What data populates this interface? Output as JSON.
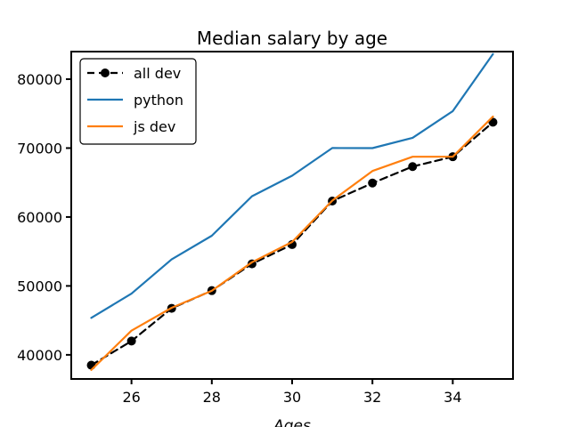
{
  "chart_data": {
    "type": "line",
    "title": "Median salary by age",
    "xlabel": "Ages",
    "ylabel": "",
    "x": [
      25,
      26,
      27,
      28,
      29,
      30,
      31,
      32,
      33,
      34,
      35
    ],
    "xlim": [
      24.5,
      35.5
    ],
    "ylim": [
      36500,
      84000
    ],
    "xticks": [
      26,
      28,
      30,
      32,
      34
    ],
    "yticks": [
      40000,
      50000,
      60000,
      70000,
      80000
    ],
    "grid": false,
    "legend_position": "top-left",
    "series": [
      {
        "name": "all dev",
        "color": "#000000",
        "style": "dashed-marker",
        "values": [
          38496,
          42000,
          46752,
          49320,
          53200,
          56000,
          62316,
          64928,
          67317,
          68748,
          73752
        ]
      },
      {
        "name": "python",
        "color": "#1f77b4",
        "style": "solid",
        "values": [
          45372,
          48876,
          53850,
          57287,
          63016,
          65998,
          70003,
          70000,
          71496,
          75370,
          83640
        ]
      },
      {
        "name": "js dev",
        "color": "#ff7f0e",
        "style": "solid",
        "values": [
          37810,
          43515,
          46823,
          49293,
          53437,
          56373,
          62375,
          66674,
          68745,
          68746,
          74583
        ]
      }
    ]
  }
}
